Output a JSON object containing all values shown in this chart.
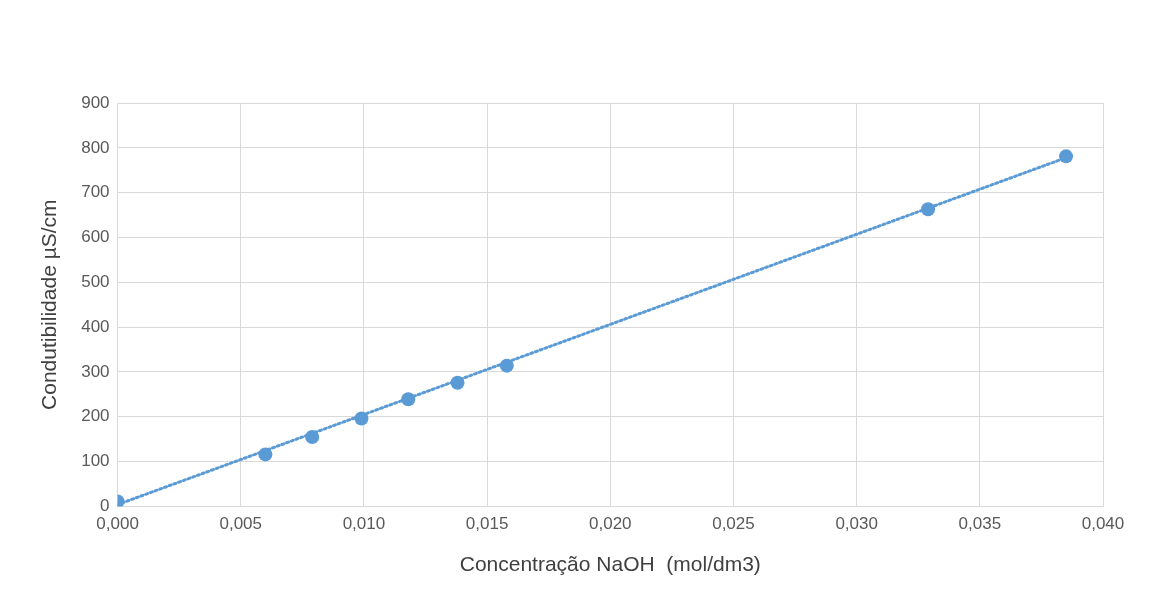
{
  "chart_data": {
    "type": "scatter",
    "xlabel": "Concentração NaOH  (mol/dm3)",
    "ylabel": "Condutibilidade µS/cm",
    "xlim": [
      0,
      0.04
    ],
    "ylim": [
      0,
      900
    ],
    "xticks": [
      {
        "value": 0,
        "label": "0,000"
      },
      {
        "value": 0.005,
        "label": "0,005"
      },
      {
        "value": 0.01,
        "label": "0,010"
      },
      {
        "value": 0.015,
        "label": "0,015"
      },
      {
        "value": 0.02,
        "label": "0,020"
      },
      {
        "value": 0.025,
        "label": "0,025"
      },
      {
        "value": 0.03,
        "label": "0,030"
      },
      {
        "value": 0.035,
        "label": "0,035"
      },
      {
        "value": 0.04,
        "label": "0,040"
      }
    ],
    "yticks": [
      0,
      100,
      200,
      300,
      400,
      500,
      600,
      700,
      800,
      900
    ],
    "grid": true,
    "legend": false,
    "series": [
      {
        "color": "#5b9bd5",
        "marker": "circle",
        "x": [
          0,
          0.006,
          0.0079,
          0.0099,
          0.0118,
          0.0138,
          0.0158,
          0.0329,
          0.0385
        ],
        "values": [
          11,
          116,
          155,
          196,
          239,
          276,
          314,
          663,
          781
        ]
      },
      {
        "type": "line",
        "color": "#5b9bd5",
        "marker": "none",
        "line_style": "dotted",
        "x": [
          0,
          0.0385
        ],
        "values": [
          4,
          778
        ]
      }
    ]
  }
}
